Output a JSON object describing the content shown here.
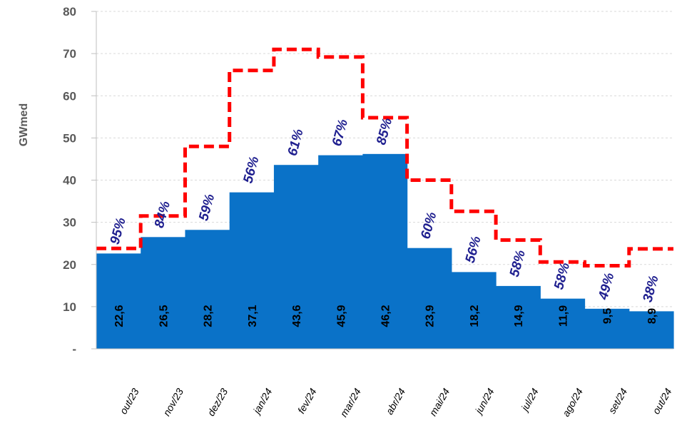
{
  "chart_data": {
    "type": "bar",
    "ylabel": "GWmed",
    "ylim": [
      0,
      80
    ],
    "yticks": [
      {
        "value": 0,
        "label": "-"
      },
      {
        "value": 10,
        "label": "10"
      },
      {
        "value": 20,
        "label": "20"
      },
      {
        "value": 30,
        "label": "30"
      },
      {
        "value": 40,
        "label": "40"
      },
      {
        "value": 50,
        "label": "50"
      },
      {
        "value": 60,
        "label": "60"
      },
      {
        "value": 70,
        "label": "70"
      },
      {
        "value": 80,
        "label": "80"
      }
    ],
    "categories": [
      "out/23",
      "nov/23",
      "dez/23",
      "jan/24",
      "fev/24",
      "mar/24",
      "abr/24",
      "mai/24",
      "jun/24",
      "jul/24",
      "ago/24",
      "set/24",
      "out/24"
    ],
    "series": [
      {
        "kind": "step-area",
        "color": "#0a72c8",
        "values": [
          22.6,
          26.5,
          28.2,
          37.1,
          43.6,
          45.9,
          46.2,
          23.9,
          18.2,
          14.9,
          11.9,
          9.5,
          8.9
        ],
        "value_labels": [
          "22,6",
          "26,5",
          "28,2",
          "37,1",
          "43,6",
          "45,9",
          "46,2",
          "23,9",
          "18,2",
          "14,9",
          "11,9",
          "9,5",
          "8,9"
        ]
      },
      {
        "kind": "dashed-step-line",
        "color": "#ff0000",
        "values": [
          23.8,
          31.5,
          48,
          66,
          71,
          69.2,
          54.8,
          40,
          32.6,
          25.8,
          20.6,
          19.7,
          23.7
        ]
      }
    ],
    "percent_labels": [
      "95%",
      "84%",
      "59%",
      "56%",
      "61%",
      "67%",
      "85%",
      "60%",
      "56%",
      "58%",
      "58%",
      "49%",
      "38%"
    ],
    "grid": "dashed-horizontal"
  }
}
